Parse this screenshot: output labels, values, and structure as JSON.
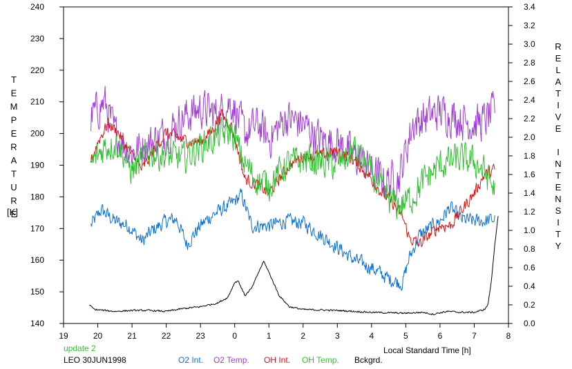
{
  "chart_data": {
    "type": "line",
    "xlabel": "Local Standard Time [h]",
    "ylabel_left": "TEMPERATURE",
    "ylabel_left_unit": "[K]",
    "ylabel_right": "RELATIVE INTENSITY",
    "x_ticks": [
      "19",
      "20",
      "21",
      "22",
      "23",
      "0",
      "1",
      "2",
      "3",
      "4",
      "5",
      "6",
      "7",
      "8"
    ],
    "x_range": [
      19,
      32
    ],
    "y_left_ticks": [
      "140",
      "150",
      "160",
      "170",
      "180",
      "190",
      "200",
      "210",
      "220",
      "230",
      "240"
    ],
    "y_left_range": [
      140,
      240
    ],
    "y_right_ticks": [
      "0.0",
      "0.2",
      "0.4",
      "0.6",
      "0.8",
      "1.0",
      "1.2",
      "1.4",
      "1.6",
      "1.8",
      "2.0",
      "2.2",
      "2.4",
      "2.6",
      "2.8",
      "3.0",
      "3.2",
      "3.4"
    ],
    "y_right_range": [
      0,
      3.4
    ],
    "grid": false,
    "annotations": {
      "update": "update 2",
      "station_date": "LEO 30JUN1998"
    },
    "legend_position": "bottom",
    "series": [
      {
        "name": "O2 Int.",
        "color": "#0a6fd6",
        "axis": "right",
        "noise": 0.07,
        "x": [
          19.8,
          20.1,
          20.5,
          20.9,
          21.3,
          21.6,
          22.0,
          22.3,
          22.6,
          23.0,
          23.3,
          23.6,
          23.9,
          24.2,
          24.5,
          25.0,
          25.5,
          26.0,
          26.5,
          27.0,
          27.5,
          28.0,
          28.5,
          28.9,
          29.1,
          29.4,
          29.8,
          30.0,
          30.3,
          30.6,
          31.0,
          31.3,
          31.6
        ],
        "y": [
          1.05,
          1.22,
          1.1,
          1.05,
          0.88,
          1.0,
          1.1,
          1.12,
          0.85,
          1.05,
          1.15,
          1.22,
          1.28,
          1.38,
          1.05,
          1.05,
          1.1,
          1.08,
          0.95,
          0.82,
          0.68,
          0.6,
          0.48,
          0.43,
          0.7,
          0.95,
          1.05,
          1.1,
          1.25,
          1.12,
          1.1,
          1.1,
          1.12
        ]
      },
      {
        "name": "O2 Temp.",
        "color": "#a03ad8",
        "axis": "left",
        "noise": 5.5,
        "x": [
          19.8,
          20.2,
          20.5,
          21.0,
          21.5,
          22.0,
          22.5,
          23.0,
          23.5,
          23.9,
          24.3,
          24.7,
          25.0,
          25.5,
          26.0,
          26.5,
          27.0,
          27.5,
          28.0,
          28.4,
          28.8,
          29.2,
          29.6,
          30.0,
          30.5,
          31.0,
          31.3,
          31.6
        ],
        "y": [
          205,
          210,
          200,
          194,
          197,
          200,
          205,
          208,
          206,
          210,
          200,
          203,
          198,
          205,
          203,
          198,
          197,
          193,
          188,
          185,
          186,
          203,
          205,
          207,
          205,
          203,
          204,
          207
        ]
      },
      {
        "name": "OH Int.",
        "color": "#e01010",
        "axis": "right",
        "noise": 0.06,
        "x": [
          19.8,
          20.0,
          20.3,
          20.6,
          21.0,
          21.3,
          21.7,
          22.0,
          22.3,
          22.7,
          23.0,
          23.3,
          23.6,
          23.9,
          24.1,
          24.3,
          24.6,
          25.0,
          25.3,
          25.6,
          26.0,
          26.5,
          27.0,
          27.5,
          28.0,
          28.3,
          28.6,
          28.9,
          29.1,
          29.4,
          29.7,
          30.0,
          30.3,
          30.6,
          31.0,
          31.3,
          31.6
        ],
        "y": [
          1.75,
          1.95,
          2.15,
          2.05,
          1.8,
          1.65,
          1.9,
          2.05,
          2.0,
          1.95,
          1.95,
          2.05,
          2.25,
          2.12,
          1.85,
          1.55,
          1.5,
          1.4,
          1.55,
          1.7,
          1.8,
          1.8,
          1.85,
          1.75,
          1.55,
          1.4,
          1.3,
          1.15,
          0.92,
          0.85,
          0.95,
          1.05,
          1.05,
          1.2,
          1.4,
          1.6,
          1.65
        ]
      },
      {
        "name": "OH Temp.",
        "color": "#2fc02f",
        "axis": "left",
        "noise": 4.5,
        "x": [
          19.8,
          20.2,
          20.6,
          21.0,
          21.5,
          22.0,
          22.5,
          23.0,
          23.5,
          23.9,
          24.3,
          24.7,
          25.0,
          25.5,
          26.0,
          26.5,
          27.0,
          27.5,
          28.0,
          28.4,
          28.8,
          29.2,
          29.6,
          30.0,
          30.5,
          31.0,
          31.3,
          31.6
        ],
        "y": [
          190,
          196,
          197,
          188,
          194,
          193,
          192,
          196,
          199,
          201,
          190,
          185,
          184,
          190,
          192,
          191,
          190,
          195,
          187,
          180,
          177,
          180,
          186,
          190,
          192,
          191,
          188,
          182
        ]
      },
      {
        "name": "Bckgrd.",
        "color": "#000000",
        "axis": "right",
        "noise": 0.008,
        "x": [
          19.75,
          19.9,
          20.5,
          21.0,
          21.5,
          22.0,
          22.5,
          23.0,
          23.5,
          23.8,
          24.0,
          24.1,
          24.3,
          24.5,
          24.7,
          24.85,
          25.0,
          25.3,
          25.6,
          26.0,
          27.0,
          28.0,
          29.0,
          29.5,
          29.8,
          30.2,
          30.6,
          31.0,
          31.3,
          31.4,
          31.5,
          31.6,
          31.7
        ],
        "y": [
          0.2,
          0.15,
          0.13,
          0.14,
          0.14,
          0.13,
          0.16,
          0.18,
          0.22,
          0.28,
          0.44,
          0.46,
          0.3,
          0.38,
          0.55,
          0.67,
          0.55,
          0.3,
          0.18,
          0.15,
          0.14,
          0.12,
          0.11,
          0.12,
          0.1,
          0.13,
          0.12,
          0.12,
          0.15,
          0.2,
          0.45,
          0.85,
          1.15
        ]
      }
    ]
  }
}
